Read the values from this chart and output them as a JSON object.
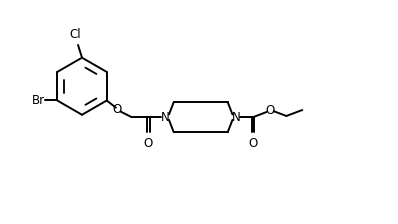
{
  "bg_color": "#ffffff",
  "line_color": "#000000",
  "text_color": "#000000",
  "lw": 1.4,
  "font_size": 8.5,
  "figsize": [
    3.98,
    2.24
  ],
  "dpi": 100,
  "xlim": [
    0,
    10
  ],
  "ylim": [
    0,
    5.6
  ]
}
